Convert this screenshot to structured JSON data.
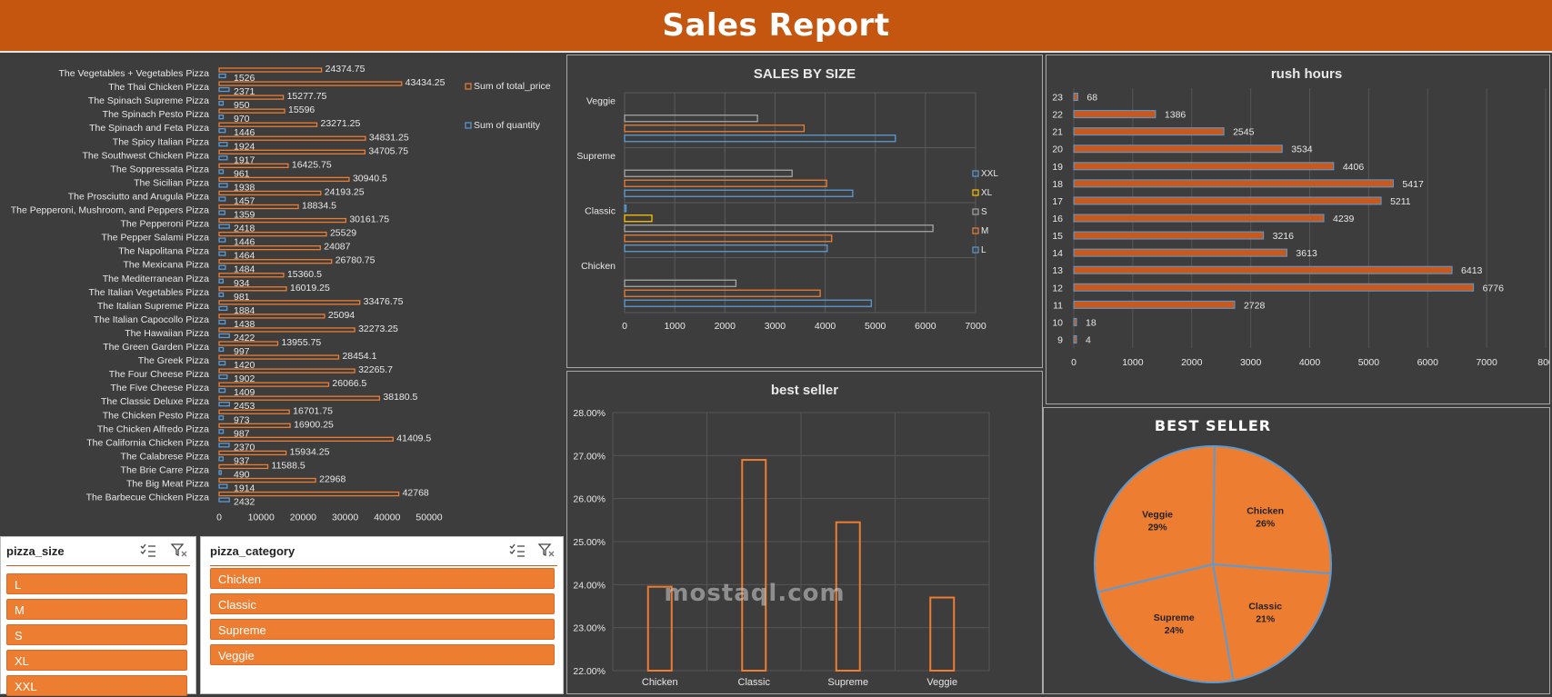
{
  "header": {
    "title": "Sales Report"
  },
  "colors": {
    "orange": "#ed7d31",
    "blue": "#5b9bd5",
    "gray": "#a5a5a5",
    "yellow": "#ffc000",
    "bg": "#3d3d3d"
  },
  "chart_data": [
    {
      "type": "bar",
      "orientation": "horizontal",
      "categories": [
        "The Vegetables + Vegetables Pizza",
        "The Thai Chicken Pizza",
        "The Spinach Supreme Pizza",
        "The Spinach Pesto Pizza",
        "The Spinach and Feta Pizza",
        "The Spicy Italian Pizza",
        "The Southwest Chicken Pizza",
        "The Soppressata Pizza",
        "The Sicilian Pizza",
        "The Prosciutto and Arugula Pizza",
        "The Pepperoni, Mushroom, and Peppers Pizza",
        "The Pepperoni Pizza",
        "The Pepper Salami Pizza",
        "The Napolitana Pizza",
        "The Mexicana Pizza",
        "The Mediterranean Pizza",
        "The Italian Vegetables Pizza",
        "The Italian Supreme Pizza",
        "The Italian Capocollo Pizza",
        "The Hawaiian Pizza",
        "The Green Garden Pizza",
        "The Greek Pizza",
        "The Four Cheese Pizza",
        "The Five Cheese Pizza",
        "The Classic Deluxe Pizza",
        "The Chicken Pesto Pizza",
        "The Chicken Alfredo Pizza",
        "The California Chicken Pizza",
        "The Calabrese Pizza",
        "The Brie Carre Pizza",
        "The Big Meat Pizza",
        "The Barbecue Chicken Pizza"
      ],
      "series": [
        {
          "name": "Sum of total_price",
          "values": [
            24374.75,
            43434.25,
            15277.75,
            15596,
            23271.25,
            34831.25,
            34705.75,
            16425.75,
            30940.5,
            24193.25,
            18834.5,
            30161.75,
            25529,
            24087,
            26780.75,
            15360.5,
            16019.25,
            33476.75,
            25094,
            32273.25,
            13955.75,
            28454.1,
            32265.7,
            26066.5,
            38180.5,
            16701.75,
            16900.25,
            41409.5,
            15934.25,
            11588.5,
            22968,
            42768
          ]
        },
        {
          "name": "Sum of quantity",
          "values": [
            1526,
            2371,
            950,
            970,
            1446,
            1924,
            1917,
            961,
            1938,
            1457,
            1359,
            2418,
            1446,
            1464,
            1484,
            934,
            981,
            1884,
            1438,
            2422,
            997,
            1420,
            1902,
            1409,
            2453,
            973,
            987,
            2370,
            937,
            490,
            1914,
            2432
          ]
        }
      ],
      "value_labels": {
        "price": [
          "24374.75",
          "43434.25",
          "15277.75",
          "15596",
          "23271.25",
          "34831.25",
          "34705.75",
          "16425.75",
          "30940.5",
          "24193.25",
          "18834.5",
          "30161.75",
          "25529",
          "24087",
          "26780.75",
          "15360.5",
          "16019.25",
          "33476.75",
          "25094",
          "32273.25",
          "13955.75",
          "28454.1",
          "32265.7",
          "26066.5",
          "38180.5",
          "16701.75",
          "16900.25",
          "41409.5",
          "15934.25",
          "11588.5",
          "22968",
          "42768"
        ],
        "qty": [
          "1526",
          "2371",
          "950",
          "970",
          "1446",
          "1924",
          "1917",
          "961",
          "1938",
          "1457",
          "1359",
          "2418",
          "1446",
          "1464",
          "1484",
          "934",
          "981",
          "1884",
          "1438",
          "2422",
          "997",
          "1420",
          "1902",
          "1409",
          "2453",
          "973",
          "987",
          "2370",
          "937",
          "490",
          "1914",
          "2432"
        ]
      },
      "xticks": [
        "0",
        "10000",
        "20000",
        "30000",
        "40000",
        "50000"
      ],
      "xlim": [
        0,
        50000
      ],
      "legend": [
        "Sum of total_price",
        "Sum of quantity"
      ],
      "legend_position": "right"
    },
    {
      "type": "bar",
      "orientation": "horizontal",
      "title": "SALES BY SIZE",
      "categories": [
        "Veggie",
        "Supreme",
        "Classic",
        "Chicken"
      ],
      "series": [
        {
          "name": "XXL",
          "values": [
            0,
            0,
            28,
            0
          ]
        },
        {
          "name": "XL",
          "values": [
            0,
            0,
            544,
            0
          ]
        },
        {
          "name": "S",
          "values": [
            2650,
            3340,
            6150,
            2220
          ]
        },
        {
          "name": "M",
          "values": [
            3580,
            4030,
            4130,
            3900
          ]
        },
        {
          "name": "L",
          "values": [
            5400,
            4550,
            4040,
            4920
          ]
        }
      ],
      "xticks": [
        "0",
        "1000",
        "2000",
        "3000",
        "4000",
        "5000",
        "6000",
        "7000"
      ],
      "xlim": [
        0,
        7000
      ],
      "legend": [
        "XXL",
        "XL",
        "S",
        "M",
        "L"
      ],
      "legend_position": "right"
    },
    {
      "type": "bar",
      "orientation": "horizontal",
      "title": "rush hours",
      "categories": [
        "23",
        "22",
        "21",
        "20",
        "19",
        "18",
        "17",
        "16",
        "15",
        "14",
        "13",
        "12",
        "11",
        "10",
        "9"
      ],
      "values": [
        68,
        1386,
        2545,
        3534,
        4406,
        5417,
        5211,
        4239,
        3216,
        3613,
        6413,
        6776,
        2728,
        18,
        4
      ],
      "value_labels": [
        "68",
        "1386",
        "2545",
        "3534",
        "4406",
        "5417",
        "5211",
        "4239",
        "3216",
        "3613",
        "6413",
        "6776",
        "2728",
        "18",
        "4"
      ],
      "xticks": [
        "0",
        "1000",
        "2000",
        "3000",
        "4000",
        "5000",
        "6000",
        "7000",
        "800"
      ],
      "xlim": [
        0,
        8000
      ]
    },
    {
      "type": "bar",
      "title": "best seller",
      "categories": [
        "Chicken",
        "Classic",
        "Supreme",
        "Veggie"
      ],
      "values": [
        23.95,
        26.9,
        25.45,
        23.7
      ],
      "yticks": [
        "28.00%",
        "27.00%",
        "26.00%",
        "25.00%",
        "24.00%",
        "23.00%",
        "22.00%"
      ],
      "ylim": [
        22,
        28
      ]
    },
    {
      "type": "pie",
      "title": "BEST SELLER",
      "categories": [
        "Chicken",
        "Classic",
        "Supreme",
        "Veggie"
      ],
      "values": [
        26,
        21,
        24,
        29
      ],
      "labels": [
        "26%",
        "21%",
        "24%",
        "29%"
      ]
    }
  ],
  "slicers": {
    "size": {
      "title": "pizza_size",
      "items": [
        "L",
        "M",
        "S",
        "XL",
        "XXL"
      ]
    },
    "category": {
      "title": "pizza_category",
      "items": [
        "Chicken",
        "Classic",
        "Supreme",
        "Veggie"
      ]
    }
  },
  "watermark": {
    "text": "mostaql.com"
  }
}
